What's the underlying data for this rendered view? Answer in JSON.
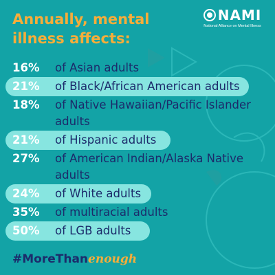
{
  "heading": "Annually, mental illness affects:",
  "logo": {
    "wordmark": "NAMI",
    "tagline": "National Alliance on Mental Illness"
  },
  "stats": [
    {
      "percent": "16%",
      "label": "of Asian adults"
    },
    {
      "percent": "21%",
      "label": "of Black/African American adults"
    },
    {
      "percent": "18%",
      "label": "of Native Hawaiian/Pacific Islander adults"
    },
    {
      "percent": "21%",
      "label": "of Hispanic adults"
    },
    {
      "percent": "27%",
      "label": "of American Indian/Alaska Native adults"
    },
    {
      "percent": "24%",
      "label": "of White adults"
    },
    {
      "percent": "35%",
      "label": "of multiracial adults"
    },
    {
      "percent": "50%",
      "label": "of LGB adults"
    }
  ],
  "hashtag": {
    "main": "#MoreThan",
    "accent": "enough"
  },
  "colors": {
    "background": "#13a3a6",
    "heading": "#f6ad3a",
    "highlight": "#87e5e0",
    "text_dark": "#1c2b6b",
    "percent": "#ffffff"
  }
}
